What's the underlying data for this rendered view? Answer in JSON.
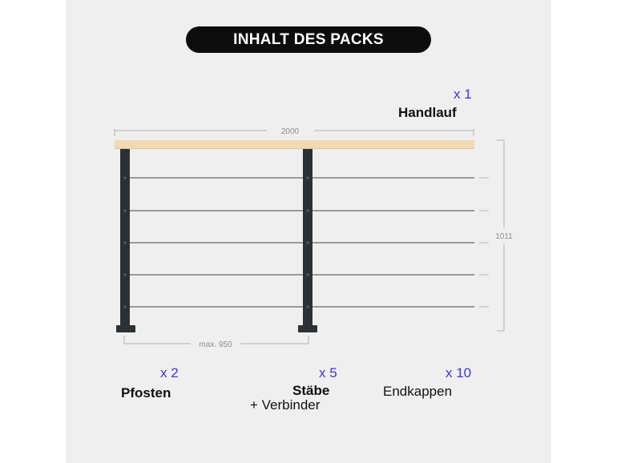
{
  "title": "INHALT DES PACKS",
  "colors": {
    "accent": "#3f35d6",
    "handrail": "#f3d9b3",
    "post": "#2b3135",
    "cable": "#9a9a9a",
    "dimension": "#9b9b9b"
  },
  "dimensions": {
    "length": "2000",
    "height": "1011",
    "post_spacing": "max. 950"
  },
  "items": {
    "handlauf": {
      "qty": "x 1",
      "name": "Handlauf"
    },
    "pfosten": {
      "qty": "x 2",
      "name": "Pfosten"
    },
    "staebe": {
      "qty": "x 5",
      "name": "Stäbe",
      "extra": "+ Verbinder"
    },
    "endkappen": {
      "qty": "x 10",
      "name": "Endkappen"
    }
  }
}
